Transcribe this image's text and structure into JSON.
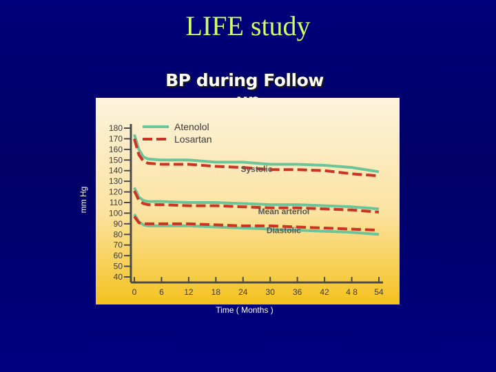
{
  "slide": {
    "title": "LIFE study"
  },
  "chart_data": {
    "type": "line",
    "title": "BP during Follow -up",
    "xlabel": "Time ( Months )",
    "ylabel": "mm Hg",
    "x_ticks": [
      "0",
      "6",
      "12",
      "18",
      "24",
      "30",
      "36",
      "42",
      "4 8",
      "54"
    ],
    "x_values": [
      0,
      6,
      12,
      18,
      24,
      30,
      36,
      42,
      48,
      54
    ],
    "y_ticks": [
      40,
      50,
      60,
      70,
      80,
      90,
      100,
      110,
      120,
      130,
      140,
      150,
      160,
      170,
      180
    ],
    "ylim": [
      40,
      180
    ],
    "xlim": [
      0,
      54
    ],
    "legend": {
      "placement": "top-left",
      "entries": [
        {
          "name": "Atenolol",
          "color": "#6cc49a",
          "style": "solid"
        },
        {
          "name": "Losartan",
          "color": "#cc3322",
          "style": "dashed"
        }
      ]
    },
    "annotations": [
      {
        "text": "Systolic",
        "x": 27,
        "y": 139
      },
      {
        "text": "Mean arteriol",
        "x": 33,
        "y": 99
      },
      {
        "text": "Diastolic",
        "x": 33,
        "y": 81
      }
    ],
    "series": [
      {
        "group": "Systolic",
        "name": "Atenolol",
        "x": [
          0,
          1,
          2,
          3,
          6,
          12,
          18,
          24,
          30,
          36,
          42,
          48,
          54
        ],
        "y": [
          174,
          160,
          153,
          151,
          150,
          150,
          148,
          148,
          146,
          146,
          145,
          143,
          139
        ]
      },
      {
        "group": "Systolic",
        "name": "Losartan",
        "x": [
          0,
          1,
          2,
          3,
          6,
          12,
          18,
          24,
          30,
          36,
          42,
          48,
          54
        ],
        "y": [
          170,
          155,
          149,
          147,
          146,
          146,
          144,
          143,
          141,
          141,
          140,
          137,
          135
        ]
      },
      {
        "group": "Mean arterial",
        "name": "Atenolol",
        "x": [
          0,
          1,
          2,
          3,
          6,
          12,
          18,
          24,
          30,
          36,
          42,
          48,
          54
        ],
        "y": [
          124,
          115,
          112,
          111,
          111,
          110,
          110,
          109,
          108,
          108,
          107,
          106,
          104
        ]
      },
      {
        "group": "Mean arterial",
        "name": "Losartan",
        "x": [
          0,
          1,
          2,
          3,
          6,
          12,
          18,
          24,
          30,
          36,
          42,
          48,
          54
        ],
        "y": [
          121,
          112,
          109,
          108,
          108,
          107,
          107,
          106,
          105,
          105,
          104,
          103,
          101
        ]
      },
      {
        "group": "Diastolic",
        "name": "Atenolol",
        "x": [
          0,
          1,
          2,
          3,
          6,
          12,
          18,
          24,
          30,
          36,
          42,
          48,
          54
        ],
        "y": [
          99,
          92,
          89,
          88,
          88,
          88,
          87,
          86,
          85,
          84,
          83,
          82,
          80
        ]
      },
      {
        "group": "Diastolic",
        "name": "Losartan",
        "x": [
          0,
          1,
          2,
          3,
          6,
          12,
          18,
          24,
          30,
          36,
          42,
          48,
          54
        ],
        "y": [
          97,
          91,
          90,
          90,
          90,
          90,
          89,
          88,
          88,
          87,
          86,
          85,
          84
        ]
      }
    ]
  }
}
